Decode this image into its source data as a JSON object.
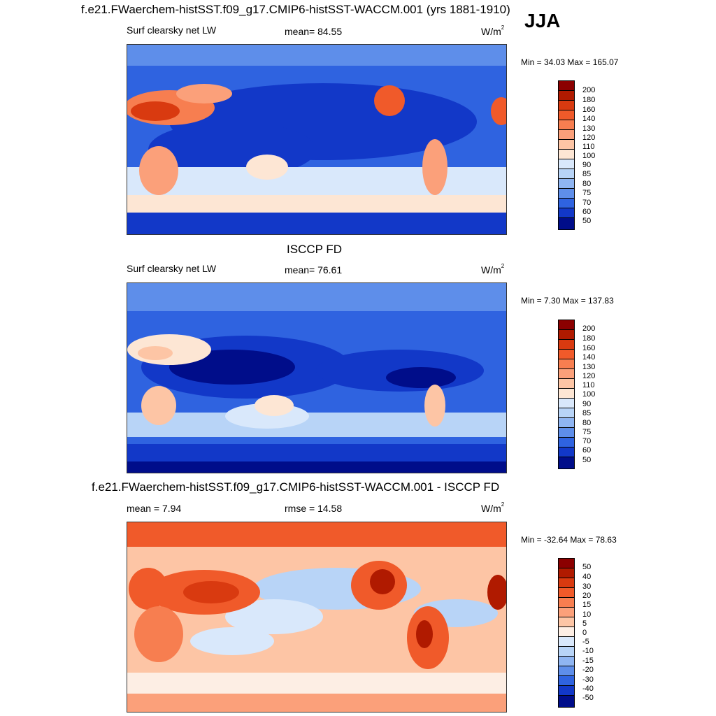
{
  "header": {
    "case_title": "f.e21.FWaerchem-histSST.f09_g17.CMIP6-histSST-WACCM.001 (yrs 1881-1910)",
    "season": "JJA"
  },
  "panel1": {
    "variable": "Surf clearsky net LW",
    "mean_text": "mean=  84.55",
    "units": "W/m",
    "units_exp": "2",
    "minmax_text": "Min =  34.03 Max = 165.07",
    "colorbar": [
      "200",
      "180",
      "160",
      "140",
      "130",
      "120",
      "110",
      "100",
      "90",
      "85",
      "80",
      "75",
      "70",
      "60",
      "50"
    ]
  },
  "panel2": {
    "title": "ISCCP FD",
    "variable": "Surf clearsky net LW",
    "mean_text": "mean=  76.61",
    "units": "W/m",
    "units_exp": "2",
    "minmax_text": "Min =   7.30 Max = 137.83",
    "colorbar": [
      "200",
      "180",
      "160",
      "140",
      "130",
      "120",
      "110",
      "100",
      "90",
      "85",
      "80",
      "75",
      "70",
      "60",
      "50"
    ]
  },
  "panel3": {
    "title": "f.e21.FWaerchem-histSST.f09_g17.CMIP6-histSST-WACCM.001 - ISCCP FD",
    "mean_text": "mean =   7.94",
    "rmse_text": "rmse =  14.58",
    "units": "W/m",
    "units_exp": "2",
    "minmax_text": "Min = -32.64 Max =  78.63",
    "colorbar": [
      "50",
      "40",
      "30",
      "20",
      "15",
      "10",
      "5",
      "0",
      "-5",
      "-10",
      "-15",
      "-20",
      "-30",
      "-40",
      "-50"
    ]
  },
  "colors": {
    "abs_scale": [
      "#8b0000",
      "#b01a00",
      "#d93a10",
      "#f05a2a",
      "#f77e50",
      "#fba07a",
      "#fdc5a5",
      "#fde6d4",
      "#d9e8fb",
      "#b8d4f7",
      "#8fb5f2",
      "#5e8eea",
      "#2f63e0",
      "#1238c8",
      "#000d8a"
    ],
    "diff_scale": [
      "#8b0000",
      "#b01a00",
      "#d93a10",
      "#f05a2a",
      "#f77e50",
      "#fba07a",
      "#fdc5a5",
      "#fdeee4",
      "#d9e8fb",
      "#b8d4f7",
      "#8fb5f2",
      "#5e8eea",
      "#2f63e0",
      "#1238c8",
      "#000d8a"
    ]
  }
}
